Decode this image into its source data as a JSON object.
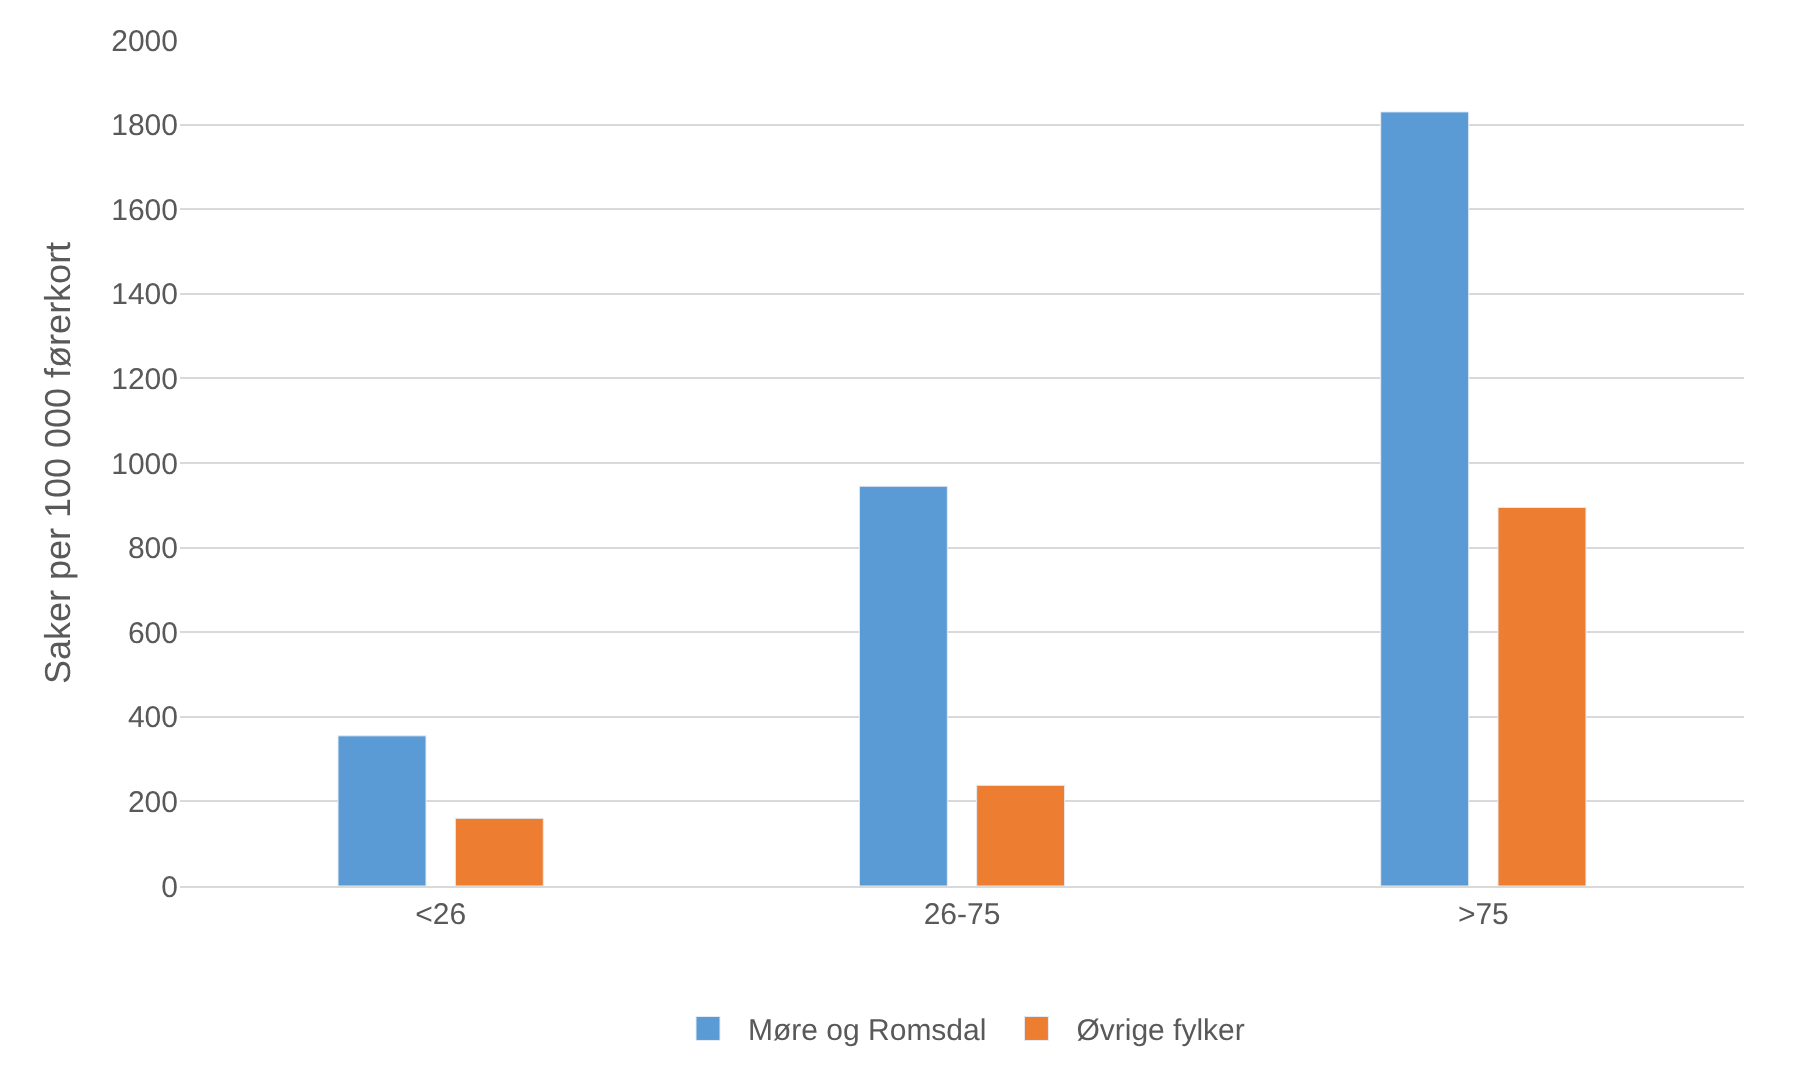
{
  "chart_data": {
    "type": "bar",
    "ylabel": "Saker per 100 000 førerkort",
    "categories": [
      "<26",
      "26-75",
      ">75"
    ],
    "series": [
      {
        "name": "Møre og Romsdal",
        "color": "#5b9bd5",
        "values": [
          355,
          945,
          1830
        ]
      },
      {
        "name": "Øvrige fylker",
        "color": "#ed7d31",
        "values": [
          160,
          238,
          895
        ]
      }
    ],
    "ylim": [
      0,
      2000
    ],
    "yticks": [
      0,
      200,
      400,
      600,
      800,
      1000,
      1200,
      1400,
      1600,
      1800,
      2000
    ],
    "grid": "y",
    "legend": "bottom"
  }
}
